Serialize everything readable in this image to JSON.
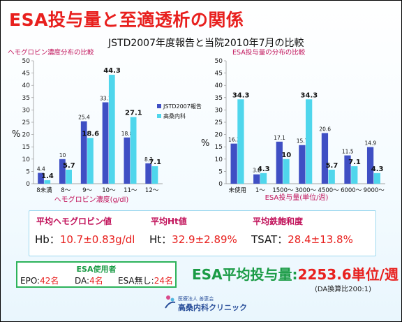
{
  "slide": {
    "title": "ESA投与量と至適透析の関係",
    "subtitle": "JSTD2007年度報告と当院2010年7月の比較"
  },
  "chart_data": [
    {
      "type": "bar",
      "title": "ヘモグロビン濃度分布の比較",
      "xlabel": "ヘモグロビン濃度(g/dl)",
      "ylabel": "%",
      "ylim": [
        0,
        50
      ],
      "yticks": [
        "0",
        "5",
        "10",
        "15",
        "20",
        "25",
        "30",
        "35",
        "40",
        "45",
        "50"
      ],
      "categories": [
        "8未満",
        "8～",
        "9～",
        "10～",
        "11～",
        "12～"
      ],
      "legend_position": "right",
      "series": [
        {
          "name": "JSTD2007報告",
          "values": [
            4.4,
            10,
            25.4,
            33.1,
            18.8,
            8.3
          ],
          "labels": [
            "4.4",
            "10",
            "25.4",
            "33.1",
            "18.8",
            "8.3"
          ],
          "color": "#3f4fc4"
        },
        {
          "name": "高桑内科",
          "values": [
            1.4,
            5.7,
            18.6,
            44.3,
            27.1,
            7.1
          ],
          "labels": [
            "1.4",
            "5.7",
            "18.6",
            "44.3",
            "27.1",
            "7.1"
          ],
          "color": "#4fd6ec"
        }
      ]
    },
    {
      "type": "bar",
      "title": "ESA投与量の分布の比較",
      "xlabel": "ESA投与量(単位/週)",
      "ylabel": "%",
      "ylim": [
        0,
        50
      ],
      "yticks": [
        "0",
        "5",
        "10",
        "15",
        "20",
        "25",
        "30",
        "35",
        "40",
        "45",
        "50"
      ],
      "categories": [
        "未使用",
        "1～",
        "1500～",
        "3000～",
        "4500～",
        "6000～",
        "9000～"
      ],
      "series": [
        {
          "name": "JSTD2007報告",
          "values": [
            16.3,
            3.8,
            17.1,
            15.7,
            20.6,
            11.5,
            14.9
          ],
          "labels": [
            "16.3",
            "3.8",
            "17.1",
            "15.7",
            "20.6",
            "11.5",
            "14.9"
          ],
          "color": "#3f4fc4"
        },
        {
          "name": "高桑内科",
          "values": [
            34.3,
            4.3,
            10,
            34.3,
            5.7,
            7.1,
            4.3
          ],
          "labels": [
            "34.3",
            "4.3",
            "10",
            "34.3",
            "5.7",
            "7.1",
            "4.3"
          ],
          "color": "#4fd6ec"
        }
      ]
    }
  ],
  "stats": {
    "hb_label": "平均ヘモグロビン値",
    "hb_prefix": "Hb：",
    "hb_value": "10.7±0.83g/dl",
    "ht_label": "平均Ht値",
    "ht_prefix": "Ht：",
    "ht_value": "32.9±2.89%",
    "tsat_label": "平均鉄飽和度",
    "tsat_prefix": "TSAT：",
    "tsat_value": "28.4±13.8%"
  },
  "esa_users": {
    "title": "ESA使用者",
    "epo_label": "EPO:",
    "epo_count": "42名",
    "da_label": "DA:",
    "da_count": "4名",
    "none_label": "ESA無し:",
    "none_count": "24名"
  },
  "esa_dose": {
    "label": "ESA平均投与量:",
    "value": "2253.6単位/週",
    "note": "(DA換算比200:1)"
  },
  "clinic": {
    "corp": "医療法人 善恵会",
    "name": "高桑内科クリニック"
  },
  "colors": {
    "title": "#e8201e",
    "jstd_bar": "#3f4fc4",
    "clinic_bar": "#4fd6ec",
    "accent_green": "#1a9b45",
    "stat_label": "#c1125a"
  }
}
